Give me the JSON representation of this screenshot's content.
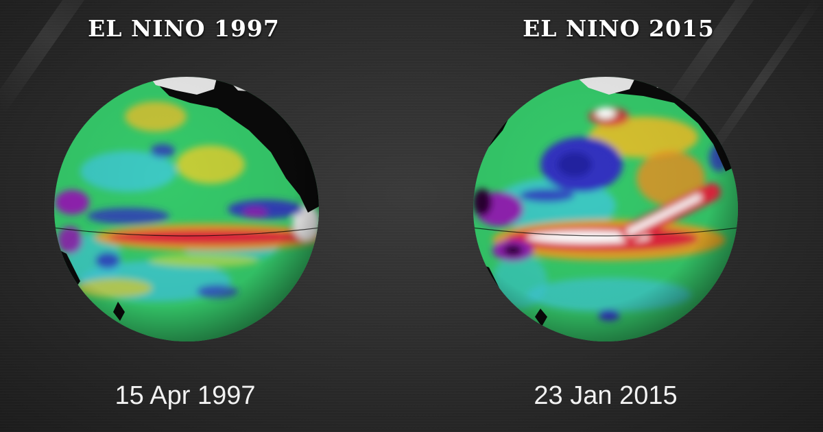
{
  "panels": [
    {
      "title": "EL NINO 1997",
      "date": "15 Apr 1997"
    },
    {
      "title": "EL NINO 2015",
      "date": "23 Jan 2015"
    }
  ],
  "colors": {
    "background": "#262626",
    "land": "#0a0a0a",
    "ice": "#e8e8e8",
    "ocean_base": "#35c96a",
    "anomaly_high": "#e0283c",
    "anomaly_peak": "#ffffff",
    "anomaly_low": "#3030c0",
    "anomaly_deep_low": "#9020b0"
  }
}
